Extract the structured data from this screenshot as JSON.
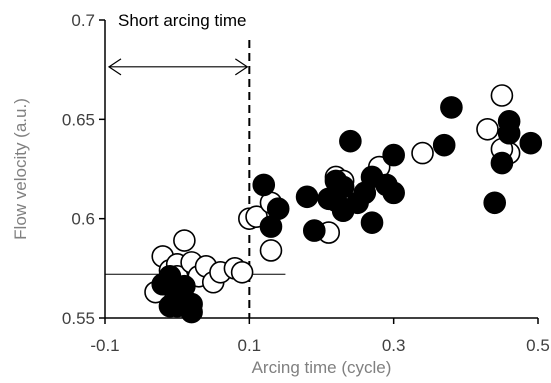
{
  "chart_data": {
    "type": "scatter",
    "xlabel": "Arcing time (cycle)",
    "ylabel": "Flow velocity (a.u.)",
    "xlim": [
      -0.1,
      0.5
    ],
    "ylim": [
      0.55,
      0.7
    ],
    "x_ticks": [
      -0.1,
      0.1,
      0.3,
      0.5
    ],
    "x_tick_labels": [
      "-0.1",
      "0.1",
      "0.3",
      "0.5"
    ],
    "y_ticks": [
      0.55,
      0.6,
      0.65,
      0.7
    ],
    "y_tick_labels": [
      "0.55",
      "0.6",
      "0.65",
      "0.7"
    ],
    "grid": false,
    "legend": "none",
    "annotations": [
      {
        "text": "Short arcing time",
        "type": "double-arrow-span",
        "x_from": -0.1,
        "x_to": 0.1,
        "y": 0.686
      },
      {
        "text": "",
        "type": "vertical-dashed-line",
        "x": 0.1
      },
      {
        "text": "",
        "type": "horizontal-reference-line",
        "y": 0.572,
        "x_from": -0.1,
        "x_to": 0.15
      }
    ],
    "series": [
      {
        "marker": "open-circle",
        "color": "#000000",
        "points": [
          [
            -0.03,
            0.563
          ],
          [
            -0.02,
            0.581
          ],
          [
            -0.01,
            0.574
          ],
          [
            0.0,
            0.577
          ],
          [
            0.01,
            0.589
          ],
          [
            0.0,
            0.571
          ],
          [
            0.02,
            0.578
          ],
          [
            0.03,
            0.571
          ],
          [
            0.04,
            0.576
          ],
          [
            0.05,
            0.568
          ],
          [
            0.06,
            0.573
          ],
          [
            0.08,
            0.575
          ],
          [
            0.09,
            0.573
          ],
          [
            0.1,
            0.6
          ],
          [
            0.11,
            0.601
          ],
          [
            0.13,
            0.608
          ],
          [
            0.13,
            0.584
          ],
          [
            0.21,
            0.593
          ],
          [
            0.22,
            0.621
          ],
          [
            0.23,
            0.619
          ],
          [
            0.28,
            0.626
          ],
          [
            0.34,
            0.633
          ],
          [
            0.43,
            0.645
          ],
          [
            0.45,
            0.662
          ],
          [
            0.46,
            0.633
          ],
          [
            0.45,
            0.635
          ]
        ]
      },
      {
        "marker": "filled-circle",
        "color": "#000000",
        "points": [
          [
            -0.02,
            0.567
          ],
          [
            -0.01,
            0.571
          ],
          [
            -0.01,
            0.556
          ],
          [
            0.0,
            0.56
          ],
          [
            0.0,
            0.556
          ],
          [
            0.01,
            0.566
          ],
          [
            0.02,
            0.553
          ],
          [
            0.02,
            0.557
          ],
          [
            0.12,
            0.617
          ],
          [
            0.13,
            0.596
          ],
          [
            0.14,
            0.605
          ],
          [
            0.18,
            0.611
          ],
          [
            0.19,
            0.594
          ],
          [
            0.21,
            0.61
          ],
          [
            0.22,
            0.609
          ],
          [
            0.22,
            0.619
          ],
          [
            0.23,
            0.616
          ],
          [
            0.23,
            0.604
          ],
          [
            0.24,
            0.639
          ],
          [
            0.25,
            0.608
          ],
          [
            0.26,
            0.613
          ],
          [
            0.27,
            0.598
          ],
          [
            0.27,
            0.621
          ],
          [
            0.29,
            0.617
          ],
          [
            0.3,
            0.613
          ],
          [
            0.3,
            0.632
          ],
          [
            0.37,
            0.637
          ],
          [
            0.38,
            0.656
          ],
          [
            0.44,
            0.608
          ],
          [
            0.45,
            0.628
          ],
          [
            0.46,
            0.643
          ],
          [
            0.46,
            0.649
          ],
          [
            0.49,
            0.638
          ]
        ]
      }
    ]
  }
}
